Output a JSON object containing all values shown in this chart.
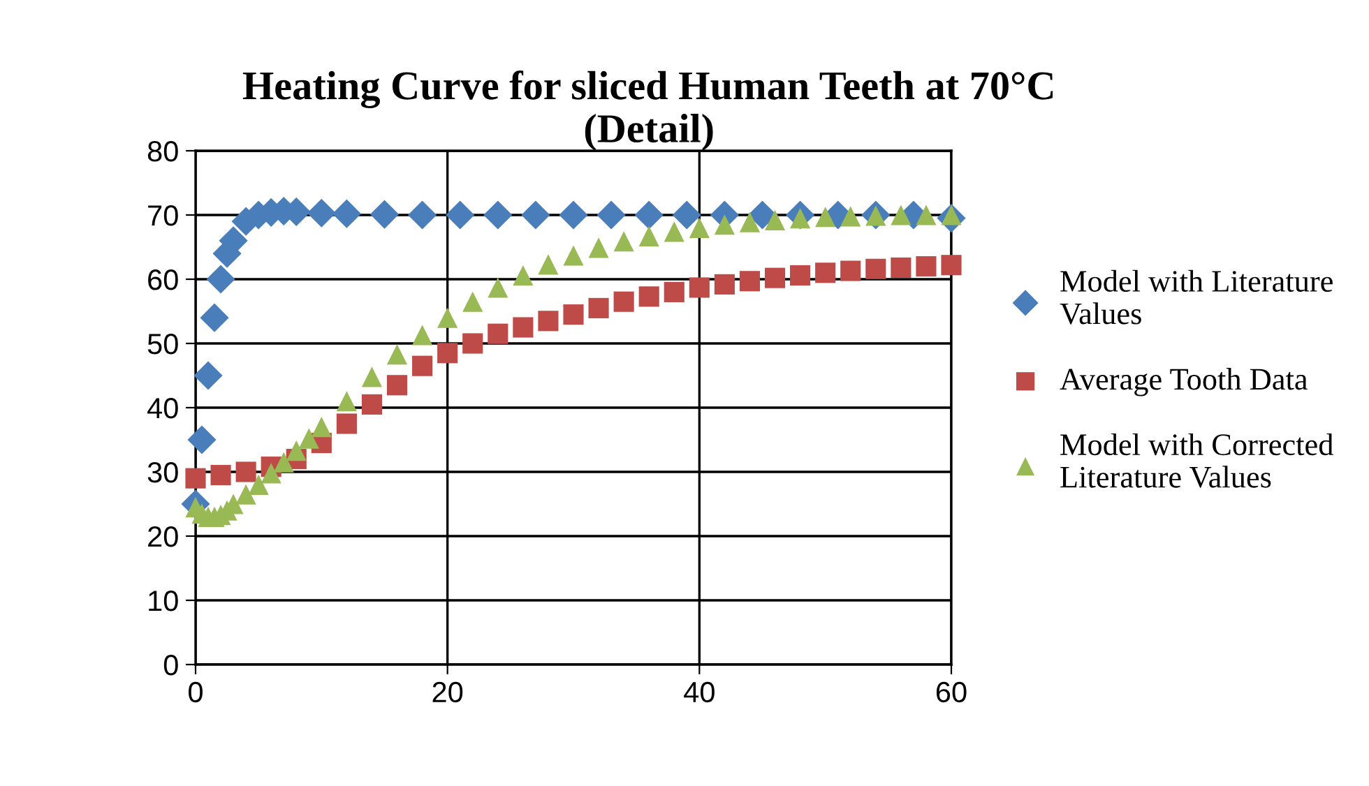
{
  "chart_data": {
    "type": "scatter",
    "title": "Heating Curve for sliced Human Teeth at 70°C\n(Detail)",
    "xlim": [
      0,
      60
    ],
    "xticks": [
      0,
      20,
      40,
      60
    ],
    "ylim": [
      0,
      80
    ],
    "yticks": [
      0,
      10,
      20,
      30,
      40,
      50,
      60,
      70,
      80
    ],
    "grid": true,
    "legend": "right",
    "series": [
      {
        "name": "Model with Literature Values",
        "color": "#4a7ebb",
        "marker": "diamond",
        "x": [
          0,
          0.5,
          1,
          1.5,
          2,
          2.5,
          3,
          4,
          5,
          6,
          7,
          8,
          10,
          12,
          15,
          18,
          21,
          24,
          27,
          30,
          33,
          36,
          39,
          42,
          45,
          48,
          51,
          54,
          57,
          60
        ],
        "values": [
          25,
          35,
          45,
          54,
          60,
          64,
          66,
          69,
          70,
          70.4,
          70.6,
          70.5,
          70.3,
          70.2,
          70.1,
          70,
          70,
          70,
          70,
          70,
          70,
          70,
          70,
          70,
          70,
          70,
          70,
          70,
          70,
          69.5
        ]
      },
      {
        "name": "Average Tooth Data",
        "color": "#be4b48",
        "marker": "square",
        "x": [
          0,
          2,
          4,
          6,
          8,
          10,
          12,
          14,
          16,
          18,
          20,
          22,
          24,
          26,
          28,
          30,
          32,
          34,
          36,
          38,
          40,
          42,
          44,
          46,
          48,
          50,
          52,
          54,
          56,
          58,
          60
        ],
        "values": [
          29,
          29.5,
          30,
          30.8,
          32,
          34.5,
          37.5,
          40.5,
          43.5,
          46.5,
          48.5,
          50,
          51.5,
          52.5,
          53.5,
          54.5,
          55.5,
          56.5,
          57.3,
          58,
          58.7,
          59.2,
          59.7,
          60.2,
          60.6,
          61,
          61.3,
          61.6,
          61.8,
          62,
          62.2
        ]
      },
      {
        "name": "Model with Corrected Literature Values",
        "color": "#98b954",
        "marker": "triangle",
        "x": [
          0,
          0.5,
          1,
          1.5,
          2,
          2.5,
          3,
          4,
          5,
          6,
          7,
          8,
          9,
          10,
          12,
          14,
          16,
          18,
          20,
          22,
          24,
          26,
          28,
          30,
          32,
          34,
          36,
          38,
          40,
          42,
          44,
          46,
          48,
          50,
          52,
          54,
          56,
          58,
          60
        ],
        "values": [
          24.5,
          23.5,
          23,
          23,
          23.3,
          24,
          25,
          26.5,
          28,
          29.8,
          31.5,
          33.3,
          35.2,
          37,
          41,
          44.8,
          48.3,
          51.3,
          54,
          56.5,
          58.7,
          60.6,
          62.3,
          63.7,
          64.9,
          65.9,
          66.7,
          67.4,
          68,
          68.5,
          68.9,
          69.2,
          69.5,
          69.7,
          69.8,
          69.9,
          70,
          70,
          70
        ]
      }
    ]
  }
}
